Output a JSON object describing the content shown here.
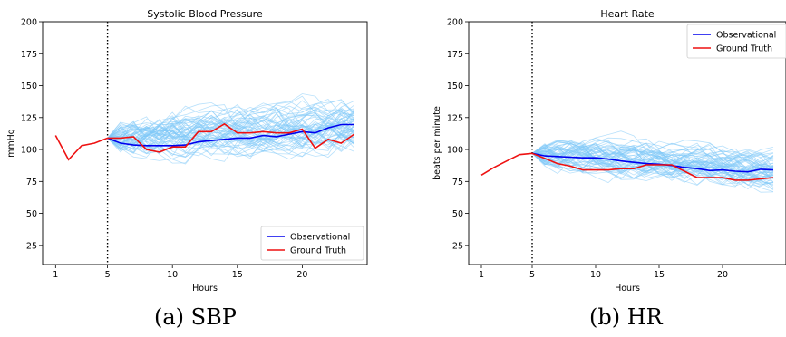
{
  "chart_data": [
    {
      "type": "line",
      "title": "Systolic Blood Pressure",
      "xlabel": "Hours",
      "ylabel": "mmHg",
      "xlim": [
        0,
        25
      ],
      "ylim": [
        10,
        200
      ],
      "xticks": [
        1,
        5,
        10,
        15,
        20
      ],
      "yticks": [
        25,
        50,
        75,
        100,
        125,
        150,
        175,
        200
      ],
      "vline_x": 5,
      "legend": "lower-right",
      "legend_entries": [
        "Observational",
        "Ground Truth"
      ],
      "series": [
        {
          "name": "Observational",
          "color": "#0000ee",
          "x": [
            5,
            6,
            7,
            8,
            9,
            10,
            11,
            12,
            13,
            14,
            15,
            16,
            17,
            18,
            19,
            20,
            21,
            22,
            23,
            24
          ],
          "values": [
            109,
            105,
            103.5,
            103,
            103,
            103,
            103.5,
            106,
            107,
            108,
            109,
            109,
            111,
            110,
            112,
            114,
            113,
            117,
            119.5,
            119.5
          ]
        },
        {
          "name": "Ground Truth",
          "color": "#ee1111",
          "x": [
            1,
            2,
            3,
            4,
            5,
            6,
            7,
            8,
            9,
            10,
            11,
            12,
            13,
            14,
            15,
            16,
            17,
            18,
            19,
            20,
            21,
            22,
            23,
            24
          ],
          "values": [
            111,
            92,
            103,
            105,
            109,
            109,
            110,
            100,
            98,
            102,
            102,
            114,
            114,
            120,
            113,
            113,
            114,
            113,
            113,
            116,
            101,
            108,
            105,
            112
          ]
        }
      ],
      "samples": {
        "color": "#7fc8f8",
        "count": 60,
        "x_start": 5,
        "x_end": 24,
        "center_start": 109,
        "center_end": 119,
        "spread": 18
      }
    },
    {
      "type": "line",
      "title": "Heart Rate",
      "xlabel": "Hours",
      "ylabel": "beats per minute",
      "xlim": [
        0,
        25
      ],
      "ylim": [
        10,
        200
      ],
      "xticks": [
        1,
        5,
        10,
        15,
        20
      ],
      "yticks": [
        25,
        50,
        75,
        100,
        125,
        150,
        175,
        200
      ],
      "vline_x": 5,
      "legend": "upper-right",
      "legend_entries": [
        "Observational",
        "Ground Truth"
      ],
      "series": [
        {
          "name": "Observational",
          "color": "#0000ee",
          "x": [
            5,
            6,
            7,
            8,
            9,
            10,
            11,
            12,
            13,
            14,
            15,
            16,
            17,
            18,
            19,
            20,
            21,
            22,
            23,
            24
          ],
          "values": [
            97,
            95,
            94.5,
            94,
            93.5,
            93.5,
            92.5,
            91,
            90,
            89,
            88.5,
            87.5,
            86,
            85,
            83.5,
            84,
            83,
            82.5,
            84.5,
            84
          ]
        },
        {
          "name": "Ground Truth",
          "color": "#ee1111",
          "x": [
            1,
            2,
            3,
            4,
            5,
            6,
            7,
            8,
            9,
            10,
            11,
            12,
            13,
            14,
            15,
            16,
            17,
            18,
            19,
            20,
            21,
            22,
            23,
            24
          ],
          "values": [
            80,
            86,
            91,
            96,
            97,
            93,
            89,
            87,
            84,
            84,
            84,
            85,
            85,
            88,
            88,
            88,
            83,
            78,
            78,
            78,
            76,
            76,
            77,
            78
          ]
        }
      ],
      "samples": {
        "color": "#7fc8f8",
        "count": 60,
        "x_start": 5,
        "x_end": 24,
        "center_start": 97,
        "center_end": 84,
        "spread": 14
      }
    }
  ],
  "captions": [
    "(a) SBP",
    "(b) HR"
  ]
}
